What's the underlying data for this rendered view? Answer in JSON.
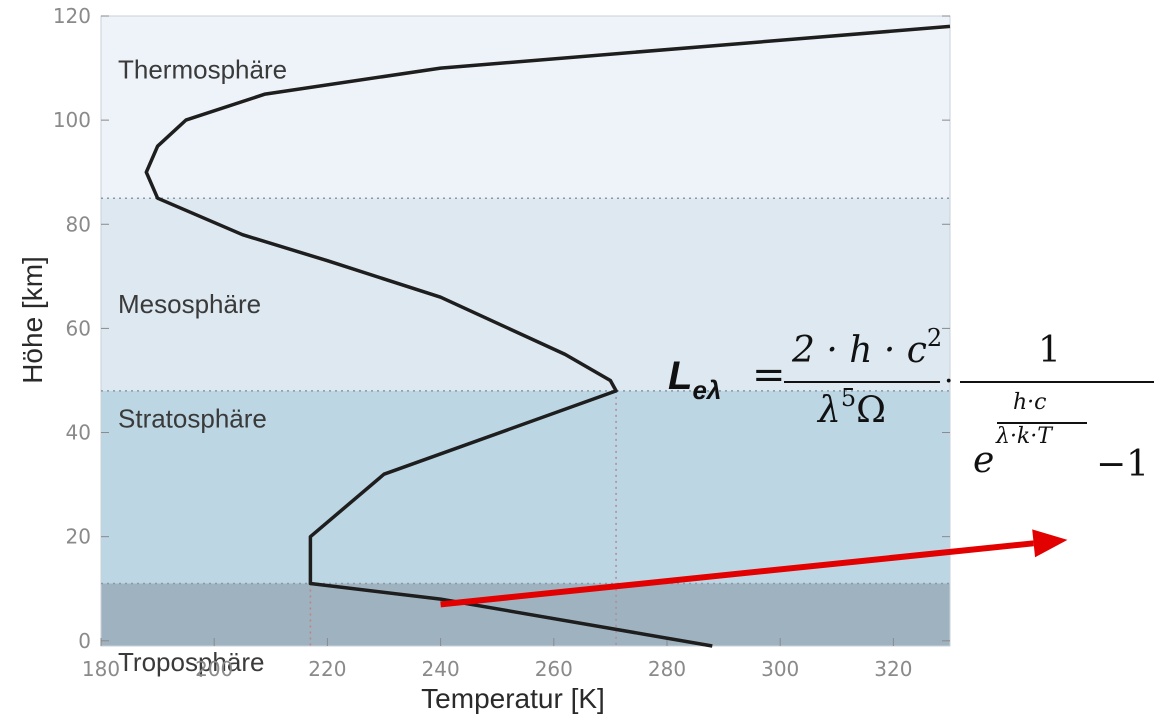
{
  "chart_data": {
    "type": "line",
    "xlabel": "Temperatur [K]",
    "ylabel": "Höhe [km]",
    "xlim": [
      180,
      330
    ],
    "ylim": [
      -1,
      120
    ],
    "xticks": [
      "180",
      "200",
      "220",
      "240",
      "260",
      "280",
      "300",
      "320"
    ],
    "yticks": [
      "0",
      "20",
      "40",
      "60",
      "80",
      "100",
      "120"
    ],
    "grid": false,
    "layers": [
      {
        "name": "Thermosphäre",
        "from": 85,
        "to": 120,
        "color": "#edf3f8"
      },
      {
        "name": "Mesosphäre",
        "from": 48,
        "to": 85,
        "color": "#dde8f0"
      },
      {
        "name": "Stratosphäre",
        "from": 11,
        "to": 48,
        "color": "#bcd6e4"
      },
      {
        "name": "Troposphäre",
        "from": -1,
        "to": 11,
        "color": "#9fb2bf"
      }
    ],
    "boundaries_km": [
      11,
      48,
      85
    ],
    "reference_T": [
      217,
      271
    ],
    "series": [
      {
        "x": [
          288,
          240,
          217,
          217,
          230,
          271,
          270,
          262,
          240,
          220,
          205,
          190,
          188,
          190,
          195,
          209,
          240,
          330
        ],
        "y": [
          -1,
          8,
          11,
          20,
          32,
          48,
          50,
          55,
          66,
          73,
          78,
          85,
          90,
          95,
          100,
          105,
          110,
          118
        ]
      }
    ],
    "arrow": {
      "from": [
        240,
        7
      ],
      "to": [
        0.925,
        0.755
      ],
      "color": "#e30000"
    }
  },
  "formula": {
    "L": "L",
    "L_sub": "eλ",
    "equals": "=",
    "num1": "2 · h · c",
    "num1_sup": "2",
    "den1": "λ",
    "den1_sup": "5",
    "den1_omega": "Ω",
    "dot": "·",
    "num2": "1",
    "exp_base": "e",
    "exp_num": "h·c",
    "exp_den": "λ·k·T",
    "minus_one": "−1"
  }
}
